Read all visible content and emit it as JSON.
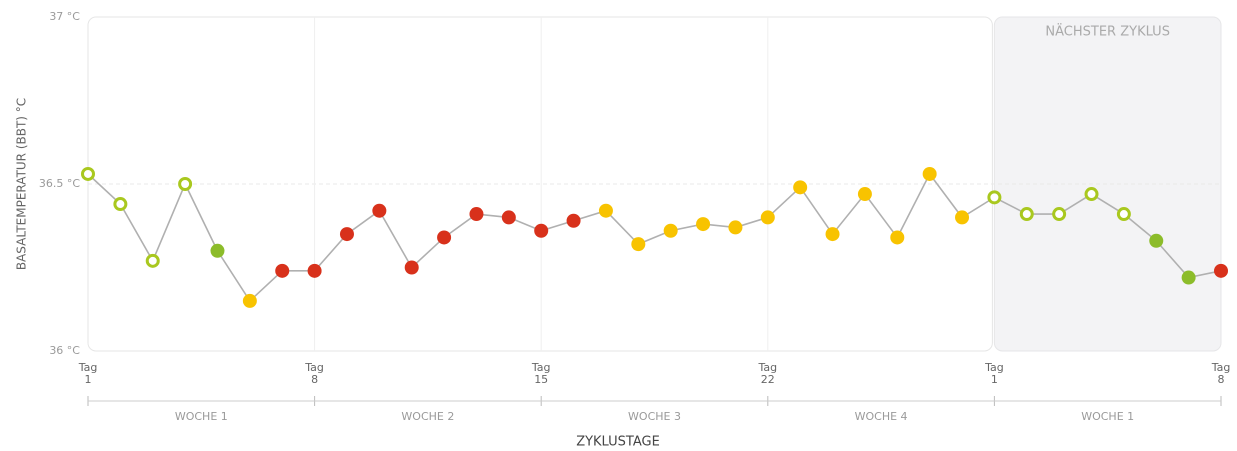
{
  "chart_data": {
    "type": "line",
    "y_label": "BASALTEMPERATUR (BBT) °C",
    "x_label": "ZYKLUSTAGE",
    "x": [
      0,
      1,
      2,
      3,
      4,
      5,
      6,
      7,
      8,
      9,
      10,
      11,
      12,
      13,
      14,
      15,
      16,
      17,
      18,
      19,
      20,
      21,
      22,
      23,
      24,
      25,
      26,
      27,
      28,
      29,
      30,
      31,
      32,
      33,
      34,
      35
    ],
    "values": [
      36.53,
      36.44,
      36.27,
      36.5,
      36.3,
      36.15,
      36.24,
      36.24,
      36.35,
      36.42,
      36.25,
      36.34,
      36.41,
      36.4,
      36.36,
      36.39,
      36.42,
      36.32,
      36.36,
      36.38,
      36.37,
      36.4,
      36.49,
      36.35,
      36.47,
      36.34,
      36.53,
      36.4,
      36.46,
      36.41,
      36.41,
      36.47,
      36.41,
      36.33,
      36.22,
      36.24
    ],
    "line_color": "#b0b0b0",
    "marker_colors": [
      "#a9c81f",
      "#a9c81f",
      "#a9c81f",
      "#a9c81f",
      "#8cbc2a",
      "#f8c300",
      "#d8311b",
      "#d8311b",
      "#d8311b",
      "#d8311b",
      "#d8311b",
      "#d8311b",
      "#d8311b",
      "#d8311b",
      "#d8311b",
      "#d8311b",
      "#f8c300",
      "#f8c300",
      "#f8c300",
      "#f8c300",
      "#f8c300",
      "#f8c300",
      "#f8c300",
      "#f8c300",
      "#f8c300",
      "#f8c300",
      "#f8c300",
      "#f8c300",
      "#a9c81f",
      "#a9c81f",
      "#a9c81f",
      "#a9c81f",
      "#a9c81f",
      "#8cbc2a",
      "#8cbc2a",
      "#d8311b"
    ],
    "marker_hollow": [
      true,
      true,
      true,
      true,
      false,
      false,
      false,
      false,
      false,
      false,
      false,
      false,
      false,
      false,
      false,
      false,
      false,
      false,
      false,
      false,
      false,
      false,
      false,
      false,
      false,
      false,
      false,
      false,
      true,
      true,
      true,
      true,
      true,
      false,
      false,
      false
    ],
    "xlim": [
      0,
      35
    ],
    "xticks": [
      {
        "value": 0,
        "label": "Tag\n1"
      },
      {
        "value": 7,
        "label": "Tag\n8"
      },
      {
        "value": 14,
        "label": "Tag\n15"
      },
      {
        "value": 21,
        "label": "Tag\n22"
      },
      {
        "value": 28,
        "label": "Tag\n1"
      },
      {
        "value": 35,
        "label": "Tag\n8"
      }
    ],
    "ylim": [
      36,
      37
    ],
    "yticks": [
      {
        "value": 36,
        "label": "36 °C"
      },
      {
        "value": 36.5,
        "label": "36.5 °C"
      },
      {
        "value": 37,
        "label": "37 °C"
      }
    ],
    "grid": true,
    "weeks": [
      {
        "label": "WOCHE 1",
        "start": 0,
        "end": 7
      },
      {
        "label": "WOCHE 2",
        "start": 7,
        "end": 14
      },
      {
        "label": "WOCHE 3",
        "start": 14,
        "end": 21
      },
      {
        "label": "WOCHE 4",
        "start": 21,
        "end": 28
      },
      {
        "label": "WOCHE 1",
        "start": 28,
        "end": 35
      }
    ],
    "next_cycle": {
      "label": "NÄCHSTER ZYKLUS",
      "start": 28,
      "end": 35
    }
  }
}
